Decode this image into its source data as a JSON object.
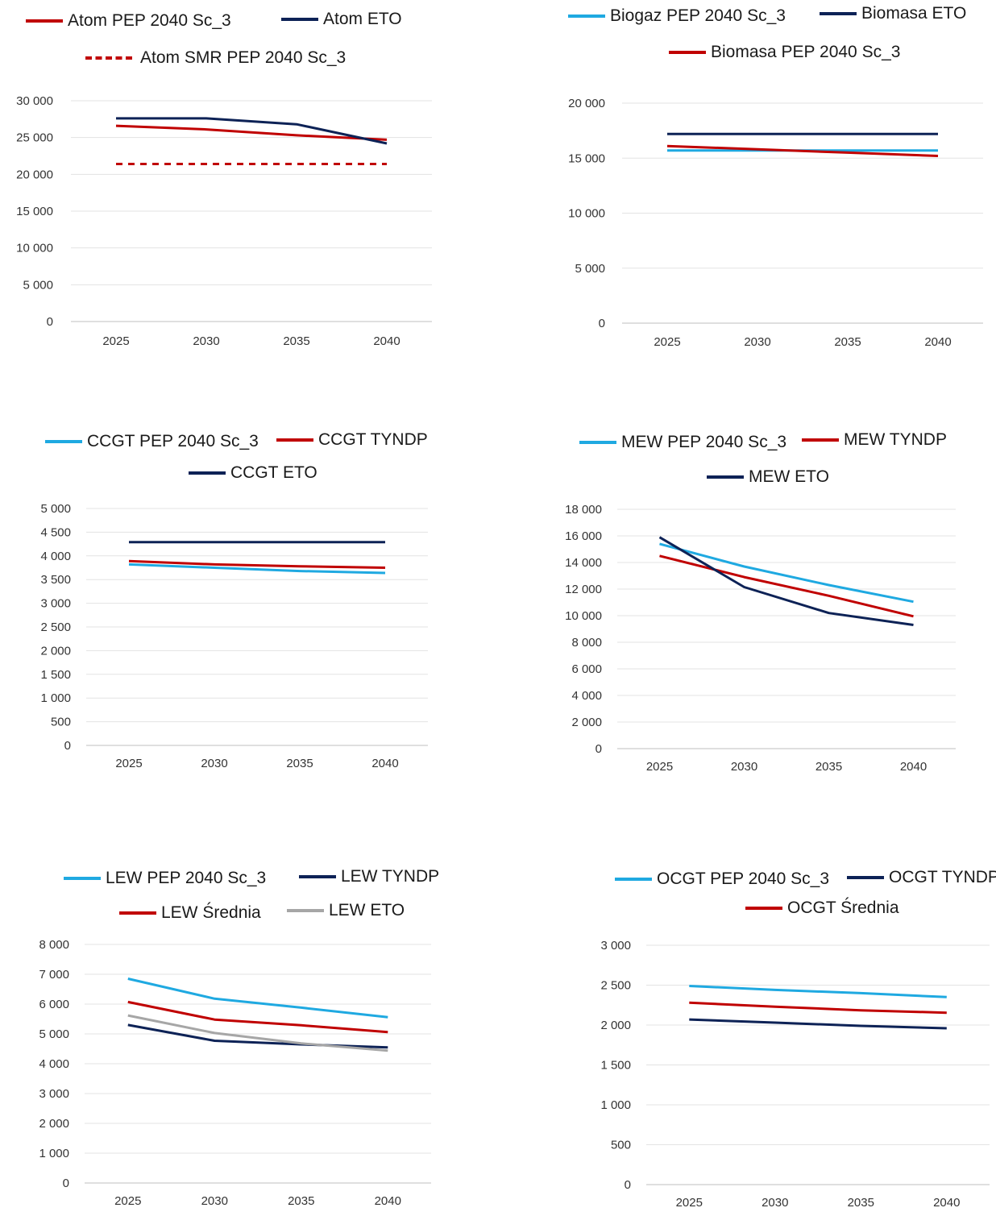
{
  "chart_data": [
    {
      "type": "line",
      "categories": [
        "2025",
        "2030",
        "2035",
        "2040"
      ],
      "ylim": [
        0,
        30000
      ],
      "yticks": [
        0,
        5000,
        10000,
        15000,
        20000,
        25000,
        30000
      ],
      "ytick_labels": [
        "0",
        "5 000",
        "10 000",
        "15 000",
        "20 000",
        "25 000",
        "30 000"
      ],
      "grid": true,
      "legend_placement": "top",
      "series": [
        {
          "name": "Atom PEP 2040 Sc_3",
          "color": "#c00000",
          "dashed": false,
          "values": [
            26600,
            26100,
            25300,
            24700
          ]
        },
        {
          "name": "Atom ETO",
          "color": "#0d2256",
          "dashed": false,
          "values": [
            27600,
            27600,
            26800,
            24200
          ]
        },
        {
          "name": "Atom SMR PEP 2040 Sc_3",
          "color": "#c00000",
          "dashed": true,
          "values": [
            21400,
            21400,
            21400,
            21400
          ]
        }
      ]
    },
    {
      "type": "line",
      "categories": [
        "2025",
        "2030",
        "2035",
        "2040"
      ],
      "ylim": [
        0,
        20000
      ],
      "yticks": [
        0,
        5000,
        10000,
        15000,
        20000
      ],
      "ytick_labels": [
        "0",
        "5 000",
        "10 000",
        "15 000",
        "20 000"
      ],
      "grid": true,
      "legend_placement": "top",
      "series": [
        {
          "name": "Biogaz PEP 2040 Sc_3",
          "color": "#1fa9e1",
          "dashed": false,
          "values": [
            15700,
            15700,
            15700,
            15700
          ]
        },
        {
          "name": "Biomasa ETO",
          "color": "#0d2256",
          "dashed": false,
          "values": [
            17200,
            17200,
            17200,
            17200
          ]
        },
        {
          "name": "Biomasa PEP 2040 Sc_3",
          "color": "#c00000",
          "dashed": false,
          "values": [
            16100,
            15800,
            15500,
            15200
          ]
        }
      ]
    },
    {
      "type": "line",
      "categories": [
        "2025",
        "2030",
        "2035",
        "2040"
      ],
      "ylim": [
        0,
        5000
      ],
      "yticks": [
        0,
        500,
        1000,
        1500,
        2000,
        2500,
        3000,
        3500,
        4000,
        4500,
        5000
      ],
      "ytick_labels": [
        "0",
        "500",
        "1 000",
        "1 500",
        "2 000",
        "2 500",
        "3 000",
        "3 500",
        "4 000",
        "4 500",
        "5 000"
      ],
      "grid": true,
      "legend_placement": "top",
      "series": [
        {
          "name": "CCGT PEP 2040 Sc_3",
          "color": "#1fa9e1",
          "dashed": false,
          "values": [
            3820,
            3750,
            3680,
            3640
          ]
        },
        {
          "name": "CCGT TYNDP",
          "color": "#c00000",
          "dashed": false,
          "values": [
            3890,
            3820,
            3780,
            3750
          ]
        },
        {
          "name": "CCGT ETO",
          "color": "#0d2256",
          "dashed": false,
          "values": [
            4290,
            4290,
            4290,
            4290
          ]
        }
      ]
    },
    {
      "type": "line",
      "categories": [
        "2025",
        "2030",
        "2035",
        "2040"
      ],
      "ylim": [
        0,
        18000
      ],
      "yticks": [
        0,
        2000,
        4000,
        6000,
        8000,
        10000,
        12000,
        14000,
        16000,
        18000
      ],
      "ytick_labels": [
        "0",
        "2 000",
        "4 000",
        "6 000",
        "8 000",
        "10 000",
        "12 000",
        "14 000",
        "16 000",
        "18 000"
      ],
      "grid": true,
      "legend_placement": "top",
      "series": [
        {
          "name": "MEW PEP 2040 Sc_3",
          "color": "#1fa9e1",
          "dashed": false,
          "values": [
            15400,
            13700,
            12300,
            11050
          ]
        },
        {
          "name": "MEW TYNDP",
          "color": "#c00000",
          "dashed": false,
          "values": [
            14500,
            12900,
            11500,
            9950
          ]
        },
        {
          "name": "MEW ETO",
          "color": "#0d2256",
          "dashed": false,
          "values": [
            15900,
            12150,
            10200,
            9300
          ]
        }
      ]
    },
    {
      "type": "line",
      "categories": [
        "2025",
        "2030",
        "2035",
        "2040"
      ],
      "ylim": [
        0,
        8000
      ],
      "yticks": [
        0,
        1000,
        2000,
        3000,
        4000,
        5000,
        6000,
        7000,
        8000
      ],
      "ytick_labels": [
        "0",
        "1 000",
        "2 000",
        "3 000",
        "4 000",
        "5 000",
        "6 000",
        "7 000",
        "8 000"
      ],
      "grid": true,
      "legend_placement": "top",
      "series": [
        {
          "name": "LEW PEP 2040 Sc_3",
          "color": "#1fa9e1",
          "dashed": false,
          "values": [
            6850,
            6180,
            5880,
            5560
          ]
        },
        {
          "name": "LEW TYNDP",
          "color": "#0d2256",
          "dashed": false,
          "values": [
            5300,
            4770,
            4650,
            4550
          ]
        },
        {
          "name": "LEW Średnia",
          "color": "#c00000",
          "dashed": false,
          "values": [
            6070,
            5480,
            5290,
            5060
          ]
        },
        {
          "name": "LEW ETO",
          "color": "#a6a6a6",
          "dashed": false,
          "values": [
            5620,
            5030,
            4680,
            4440
          ]
        }
      ]
    },
    {
      "type": "line",
      "categories": [
        "2025",
        "2030",
        "2035",
        "2040"
      ],
      "ylim": [
        0,
        3000
      ],
      "yticks": [
        0,
        500,
        1000,
        1500,
        2000,
        2500,
        3000
      ],
      "ytick_labels": [
        "0",
        "500",
        "1 000",
        "1 500",
        "2 000",
        "2 500",
        "3 000"
      ],
      "grid": true,
      "legend_placement": "top",
      "series": [
        {
          "name": "OCGT PEP 2040 Sc_3",
          "color": "#1fa9e1",
          "dashed": false,
          "values": [
            2490,
            2440,
            2400,
            2350
          ]
        },
        {
          "name": "OCGT TYNDP",
          "color": "#0d2256",
          "dashed": false,
          "values": [
            2070,
            2030,
            1990,
            1960
          ]
        },
        {
          "name": "OCGT Średnia",
          "color": "#c00000",
          "dashed": false,
          "values": [
            2280,
            2230,
            2185,
            2155
          ]
        }
      ]
    }
  ]
}
